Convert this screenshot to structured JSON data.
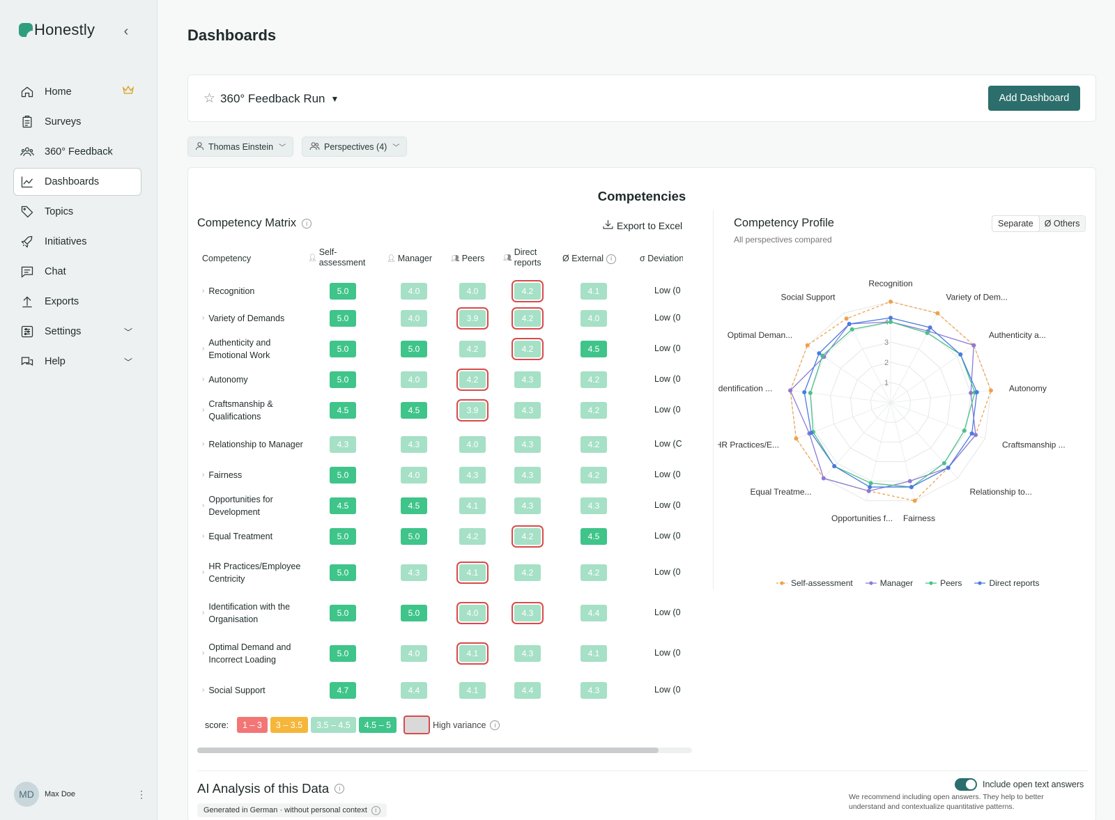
{
  "app": {
    "name": "Honestly"
  },
  "sidebar": {
    "items": [
      {
        "label": "Home",
        "icon": "home-icon"
      },
      {
        "label": "Surveys",
        "icon": "clipboard-icon"
      },
      {
        "label": "360° Feedback",
        "icon": "users-icon"
      },
      {
        "label": "Dashboards",
        "icon": "chart-icon",
        "active": true
      },
      {
        "label": "Topics",
        "icon": "tag-icon"
      },
      {
        "label": "Initiatives",
        "icon": "rocket-icon"
      },
      {
        "label": "Chat",
        "icon": "chat-icon"
      },
      {
        "label": "Exports",
        "icon": "upload-icon"
      },
      {
        "label": "Settings",
        "icon": "sliders-icon"
      },
      {
        "label": "Help",
        "icon": "help-icon"
      }
    ],
    "user": {
      "initials": "MD",
      "name": "Max Doe"
    }
  },
  "page": {
    "title": "Dashboards"
  },
  "dashboard": {
    "name": "360° Feedback Run",
    "add_label": "Add Dashboard"
  },
  "filters": {
    "person": "Thomas Einstein",
    "perspectives": "Perspectives (4)"
  },
  "card": {
    "title": "Competencies"
  },
  "matrix": {
    "title": "Competency Matrix",
    "export_label": "Export to Excel",
    "headers": {
      "competency": "Competency",
      "self": "Self-\nassessment",
      "manager": "Manager",
      "peers": "Peers",
      "direct": "Direct\nreports",
      "external": "Ø External",
      "deviation": "σ Deviation"
    },
    "rows": [
      {
        "label": "Recognition",
        "self": "5.0",
        "manager": "4.0",
        "peers": "4.0",
        "direct": "4.2",
        "external": "4.1",
        "deviation": "Low (0",
        "hv": [
          "direct"
        ],
        "lv": {
          "self": "h",
          "manager": "m",
          "peers": "m",
          "direct": "m",
          "external": "m"
        }
      },
      {
        "label": "Variety of Demands",
        "self": "5.0",
        "manager": "4.0",
        "peers": "3.9",
        "direct": "4.2",
        "external": "4.0",
        "deviation": "Low (0",
        "hv": [
          "peers",
          "direct"
        ],
        "lv": {
          "self": "h",
          "manager": "m",
          "peers": "m",
          "direct": "m",
          "external": "m"
        }
      },
      {
        "label": "Authenticity and Emotional Work",
        "self": "5.0",
        "manager": "5.0",
        "peers": "4.2",
        "direct": "4.2",
        "external": "4.5",
        "deviation": "Low (0",
        "hv": [
          "direct"
        ],
        "lv": {
          "self": "h",
          "manager": "h",
          "peers": "m",
          "direct": "m",
          "external": "h"
        }
      },
      {
        "label": "Autonomy",
        "self": "5.0",
        "manager": "4.0",
        "peers": "4.2",
        "direct": "4.3",
        "external": "4.2",
        "deviation": "Low (0",
        "hv": [
          "peers"
        ],
        "lv": {
          "self": "h",
          "manager": "m",
          "peers": "m",
          "direct": "m",
          "external": "m"
        }
      },
      {
        "label": "Craftsmanship & Qualifications",
        "self": "4.5",
        "manager": "4.5",
        "peers": "3.9",
        "direct": "4.3",
        "external": "4.2",
        "deviation": "Low (0",
        "hv": [
          "peers"
        ],
        "lv": {
          "self": "h",
          "manager": "h",
          "peers": "m",
          "direct": "m",
          "external": "m"
        }
      },
      {
        "label": "Relationship to Manager",
        "self": "4.3",
        "manager": "4.3",
        "peers": "4.0",
        "direct": "4.3",
        "external": "4.2",
        "deviation": "Low (C",
        "hv": [],
        "lv": {
          "self": "m",
          "manager": "m",
          "peers": "m",
          "direct": "m",
          "external": "m"
        }
      },
      {
        "label": "Fairness",
        "self": "5.0",
        "manager": "4.0",
        "peers": "4.3",
        "direct": "4.3",
        "external": "4.2",
        "deviation": "Low (0",
        "hv": [],
        "lv": {
          "self": "h",
          "manager": "m",
          "peers": "m",
          "direct": "m",
          "external": "m"
        }
      },
      {
        "label": "Opportunities for Development",
        "self": "4.5",
        "manager": "4.5",
        "peers": "4.1",
        "direct": "4.3",
        "external": "4.3",
        "deviation": "Low (0",
        "hv": [],
        "lv": {
          "self": "h",
          "manager": "h",
          "peers": "m",
          "direct": "m",
          "external": "m"
        }
      },
      {
        "label": "Equal Treatment",
        "self": "5.0",
        "manager": "5.0",
        "peers": "4.2",
        "direct": "4.2",
        "external": "4.5",
        "deviation": "Low (0",
        "hv": [
          "direct"
        ],
        "lv": {
          "self": "h",
          "manager": "h",
          "peers": "m",
          "direct": "m",
          "external": "h"
        }
      },
      {
        "label": "HR Practices/Employee Centricity",
        "self": "5.0",
        "manager": "4.3",
        "peers": "4.1",
        "direct": "4.2",
        "external": "4.2",
        "deviation": "Low (0",
        "hv": [
          "peers"
        ],
        "lv": {
          "self": "h",
          "manager": "m",
          "peers": "m",
          "direct": "m",
          "external": "m"
        }
      },
      {
        "label": "Identification with the Organisation",
        "self": "5.0",
        "manager": "5.0",
        "peers": "4.0",
        "direct": "4.3",
        "external": "4.4",
        "deviation": "Low (0",
        "hv": [
          "peers",
          "direct"
        ],
        "lv": {
          "self": "h",
          "manager": "h",
          "peers": "m",
          "direct": "m",
          "external": "m"
        }
      },
      {
        "label": "Optimal Demand and Incorrect Loading",
        "self": "5.0",
        "manager": "4.0",
        "peers": "4.1",
        "direct": "4.3",
        "external": "4.1",
        "deviation": "Low (0",
        "hv": [
          "peers"
        ],
        "lv": {
          "self": "h",
          "manager": "m",
          "peers": "m",
          "direct": "m",
          "external": "m"
        }
      },
      {
        "label": "Social Support",
        "self": "4.7",
        "manager": "4.4",
        "peers": "4.1",
        "direct": "4.4",
        "external": "4.3",
        "deviation": "Low (0",
        "hv": [],
        "lv": {
          "self": "h",
          "manager": "m",
          "peers": "m",
          "direct": "m",
          "external": "m"
        }
      }
    ],
    "legend": {
      "label": "score:",
      "ranges": [
        "1 – 3",
        "3 – 3.5",
        "3.5 – 4.5",
        "4.5 – 5"
      ],
      "high_variance": "High variance"
    }
  },
  "profile": {
    "title": "Competency Profile",
    "subtitle": "All perspectives compared",
    "toggle": [
      "Separate",
      "Ø Others"
    ]
  },
  "chart_data": {
    "type": "radar",
    "axes": [
      "Recognition",
      "Variety of Dem...",
      "Authenticity a...",
      "Autonomy",
      "Craftsmanship ...",
      "Relationship to...",
      "Fairness",
      "Opportunities f...",
      "Equal Treatme...",
      "HR Practices/E...",
      "Identification ...",
      "Optimal Deman...",
      "Social Support"
    ],
    "rlim": [
      0,
      5
    ],
    "ticks": [
      "1",
      "2",
      "3",
      "4"
    ],
    "legend_position": "bottom",
    "series": [
      {
        "name": "Self-assessment",
        "color": "#f0a04b",
        "dashed": true,
        "values": [
          5.0,
          5.0,
          5.0,
          5.0,
          4.5,
          4.3,
          5.0,
          4.5,
          5.0,
          5.0,
          5.0,
          5.0,
          4.7
        ]
      },
      {
        "name": "Manager",
        "color": "#8a7bd6",
        "values": [
          4.0,
          4.0,
          5.0,
          4.0,
          4.5,
          4.3,
          4.0,
          4.5,
          5.0,
          4.3,
          5.0,
          4.0,
          4.4
        ]
      },
      {
        "name": "Peers",
        "color": "#4cc08a",
        "values": [
          4.0,
          3.9,
          4.2,
          4.2,
          3.9,
          4.0,
          4.3,
          4.1,
          4.2,
          4.1,
          4.0,
          4.1,
          4.1
        ]
      },
      {
        "name": "Direct reports",
        "color": "#4a7be0",
        "values": [
          4.2,
          4.2,
          4.2,
          4.3,
          4.3,
          4.3,
          4.3,
          4.3,
          4.2,
          4.2,
          4.3,
          4.3,
          4.4
        ]
      }
    ]
  },
  "ai": {
    "title": "AI Analysis of this Data",
    "subtitle": "Generated in German · without personal context",
    "include_label": "Include open text answers",
    "recommend": "We recommend including open answers. They help to better understand and contextualize quantitative patterns."
  }
}
